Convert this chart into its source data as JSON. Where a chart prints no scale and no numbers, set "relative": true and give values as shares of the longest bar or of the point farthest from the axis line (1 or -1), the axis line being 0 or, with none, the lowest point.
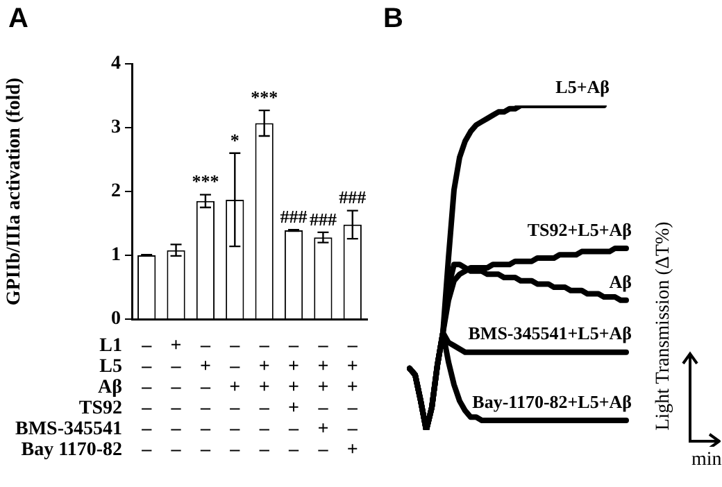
{
  "chart_data": [
    {
      "type": "bar",
      "title": "A",
      "ylabel": "GPIIb/IIIa activation (fold)",
      "categories": [
        "–\n–\n–\n–\n–\n–",
        "+\n–\n–\n–\n–\n–",
        "–\n+\n–\n–\n–\n–",
        "–\n–\n+\n–\n–\n–",
        "–\n+\n+\n–\n–\n–",
        "–\n+\n+\n+\n–\n–",
        "–\n+\n+\n–\n+\n–",
        "–\n+\n+\n–\n–\n+"
      ],
      "values": [
        1.0,
        1.08,
        1.85,
        1.87,
        3.07,
        1.39,
        1.28,
        1.48
      ],
      "errors": [
        0.01,
        0.09,
        0.1,
        0.73,
        0.2,
        0.01,
        0.08,
        0.22
      ],
      "value_labels": [
        null,
        null,
        "***",
        "*",
        "***",
        "###",
        "###",
        "###"
      ],
      "color": "#ffffff",
      "ylim": [
        0,
        4
      ],
      "yticks": [
        0,
        1,
        2,
        3,
        4
      ],
      "annotations": [
        "L1",
        "L5",
        "Aβ",
        "TS92",
        "BMS-345541",
        "Bay 1170-82"
      ]
    },
    {
      "type": "line",
      "title": "B",
      "ylabel": "Light Transmission (ΔT%)",
      "xlabel": "min",
      "relative": true,
      "marker": "none",
      "line_style": "solid",
      "categories": [
        null,
        null,
        null,
        null,
        null,
        null,
        null,
        null,
        null,
        null,
        null,
        null,
        null,
        null,
        null,
        null,
        null,
        null,
        null,
        null,
        null,
        null,
        null,
        null,
        null,
        null,
        null,
        null,
        null,
        null,
        null,
        null,
        null,
        null,
        null,
        null,
        null,
        null,
        null,
        null
      ],
      "series": [
        {
          "name": "L5+Aβ",
          "color": "#000000",
          "values": [
            0.19,
            0.17,
            0.09,
            0,
            0.07,
            0.2,
            0.3,
            0.53,
            0.74,
            0.84,
            0.89,
            0.92,
            0.94,
            0.95,
            0.96,
            0.97,
            0.98,
            0.98,
            0.99,
            0.99,
            1,
            1,
            1,
            1,
            1,
            1,
            1,
            1,
            1,
            1,
            1,
            1,
            1,
            1,
            1,
            1,
            null,
            null,
            null,
            null
          ]
        },
        {
          "name": "TS92+L5+Aβ",
          "color": "#000000",
          "values": [
            0.19,
            0.17,
            0.09,
            0,
            0.07,
            0.2,
            0.3,
            0.4,
            0.46,
            0.48,
            0.49,
            0.5,
            0.5,
            0.5,
            0.5,
            0.51,
            0.51,
            0.51,
            0.51,
            0.52,
            0.52,
            0.52,
            0.52,
            0.53,
            0.53,
            0.53,
            0.53,
            0.54,
            0.54,
            0.54,
            0.54,
            0.55,
            0.55,
            0.55,
            0.55,
            0.55,
            0.55,
            0.56,
            0.56,
            0.56
          ]
        },
        {
          "name": "Aβ",
          "color": "#000000",
          "values": [
            0.19,
            0.17,
            0.09,
            0,
            0.07,
            0.2,
            0.3,
            0.44,
            0.51,
            0.51,
            0.5,
            0.49,
            0.49,
            0.49,
            0.48,
            0.48,
            0.48,
            0.47,
            0.47,
            0.47,
            0.46,
            0.46,
            0.46,
            0.45,
            0.45,
            0.45,
            0.44,
            0.44,
            0.44,
            0.43,
            0.43,
            0.43,
            0.42,
            0.42,
            0.42,
            0.41,
            0.41,
            0.41,
            0.4,
            0.4
          ]
        },
        {
          "name": "BMS-345541+L5+Aβ",
          "color": "#000000",
          "values": [
            0.19,
            0.17,
            0.09,
            0,
            0.07,
            0.2,
            0.3,
            0.27,
            0.26,
            0.25,
            0.24,
            0.24,
            0.24,
            0.24,
            0.24,
            0.24,
            0.24,
            0.24,
            0.24,
            0.24,
            0.24,
            0.24,
            0.24,
            0.24,
            0.24,
            0.24,
            0.24,
            0.24,
            0.24,
            0.24,
            0.24,
            0.24,
            0.24,
            0.24,
            0.24,
            0.24,
            0.24,
            0.24,
            0.24,
            0.24
          ]
        },
        {
          "name": "Bay-1170-82+L5+Aβ",
          "color": "#000000",
          "values": [
            0.19,
            0.17,
            0.09,
            0,
            0.07,
            0.2,
            0.3,
            0.21,
            0.14,
            0.09,
            0.06,
            0.04,
            0.04,
            0.03,
            0.03,
            0.03,
            0.03,
            0.03,
            0.03,
            0.03,
            0.03,
            0.03,
            0.03,
            0.03,
            0.03,
            0.03,
            0.03,
            0.03,
            0.03,
            0.03,
            0.03,
            0.03,
            0.03,
            0.03,
            0.03,
            0.03,
            0.03,
            0.03,
            0.03,
            0.03
          ]
        }
      ]
    }
  ]
}
